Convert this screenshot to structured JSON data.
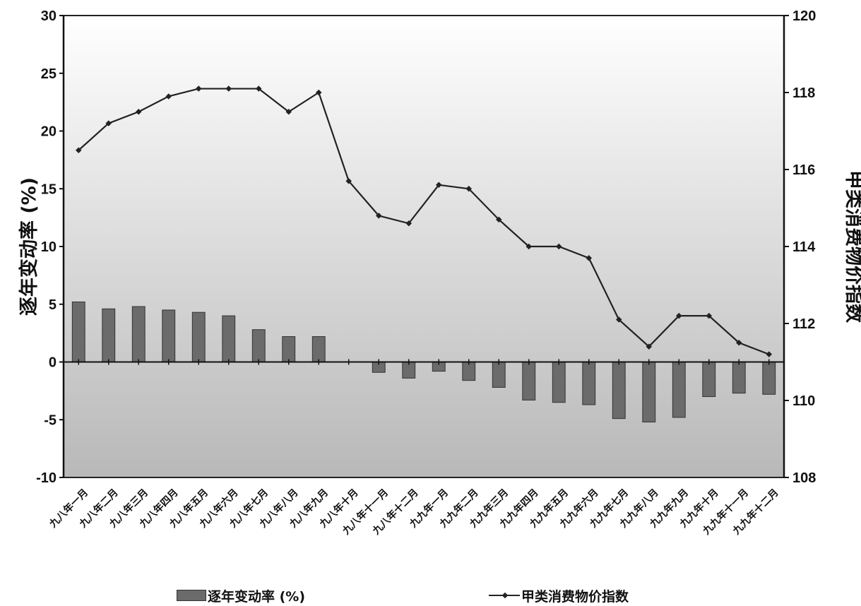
{
  "chart_data": {
    "type": "bar",
    "categories": [
      "九八年一月",
      "九八年二月",
      "九八年三月",
      "九八年四月",
      "九八年五月",
      "九八年六月",
      "九八年七月",
      "九八年八月",
      "九八年九月",
      "九八年十月",
      "九八年十一月",
      "九八年十二月",
      "九九年一月",
      "九九年二月",
      "九九年三月",
      "九九年四月",
      "九九年五月",
      "九九年六月",
      "九九年七月",
      "九九年八月",
      "九九年九月",
      "九九年十月",
      "九九年十一月",
      "九九年十二月"
    ],
    "series": [
      {
        "name": "逐年变动率 (%)",
        "type": "bar",
        "axis": "left",
        "values": [
          5.2,
          4.6,
          4.8,
          4.5,
          4.3,
          4.0,
          2.8,
          2.2,
          2.2,
          null,
          -0.9,
          -1.4,
          -0.8,
          -1.6,
          -2.2,
          -3.3,
          -3.5,
          -3.7,
          -4.9,
          -5.2,
          -4.8,
          -3.0,
          -2.7,
          -2.8
        ]
      },
      {
        "name": "甲类消费物价指数",
        "type": "line",
        "axis": "right",
        "values": [
          116.5,
          117.2,
          117.5,
          117.9,
          118.1,
          118.1,
          118.1,
          117.5,
          118.0,
          115.7,
          114.8,
          114.6,
          115.6,
          115.5,
          114.7,
          114.0,
          114.0,
          113.7,
          112.1,
          111.4,
          112.2,
          112.2,
          111.5,
          111.2
        ]
      }
    ],
    "yaxis_left": {
      "title": "逐年变动率 (%)",
      "min": -10,
      "max": 30,
      "ticks": [
        "30",
        "25",
        "20",
        "15",
        "10",
        "5",
        "0",
        "-5",
        "-10"
      ]
    },
    "yaxis_right": {
      "title": "甲类消费物价指数",
      "min": 108,
      "max": 120,
      "ticks": [
        "120",
        "118",
        "116",
        "114",
        "112",
        "110",
        "108"
      ]
    },
    "legend": {
      "placement": "bottom"
    },
    "colors": {
      "bar": "#6b6b6b",
      "line": "#222222",
      "bg_top": "#ffffff",
      "bg_bottom": "#b8b8b8"
    }
  }
}
